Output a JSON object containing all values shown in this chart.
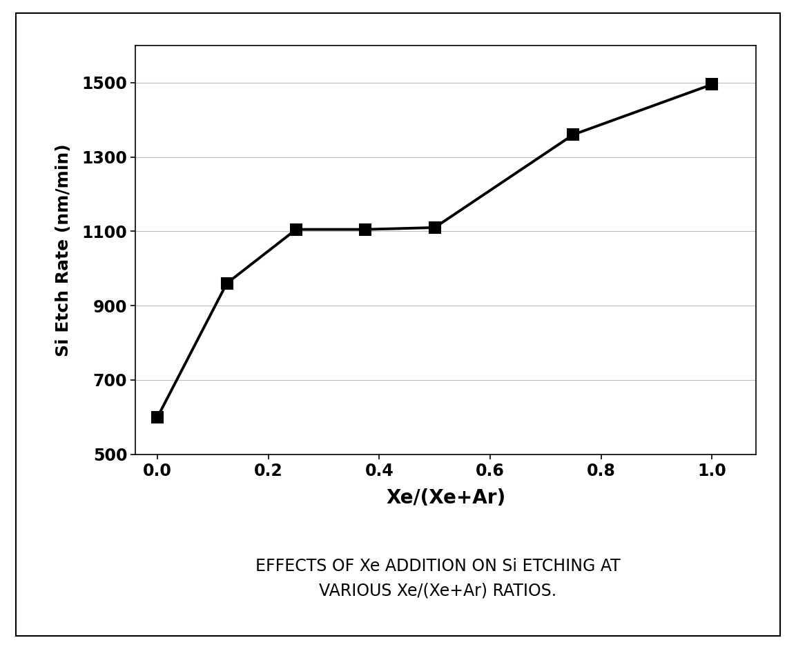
{
  "x": [
    0.0,
    0.125,
    0.25,
    0.375,
    0.5,
    0.75,
    1.0
  ],
  "y": [
    600,
    960,
    1105,
    1105,
    1110,
    1360,
    1495
  ],
  "xlabel": "Xe/(Xe+Ar)",
  "ylabel": "Si Etch Rate (nm/min)",
  "title_line1": "EFFECTS OF Xe ADDITION ON Si ETCHING AT",
  "title_line2": "VARIOUS Xe/(Xe+Ar) RATIOS.",
  "xlim": [
    -0.04,
    1.08
  ],
  "ylim": [
    500,
    1600
  ],
  "xticks": [
    0.0,
    0.2,
    0.4,
    0.6,
    0.8,
    1.0
  ],
  "yticks": [
    500,
    700,
    900,
    1100,
    1300,
    1500
  ],
  "line_color": "#000000",
  "marker": "s",
  "marker_size": 11,
  "marker_facecolor": "#000000",
  "linewidth": 2.8,
  "background_color": "#ffffff",
  "grid_color": "#bbbbbb",
  "xlabel_fontsize": 20,
  "ylabel_fontsize": 18,
  "tick_fontsize": 17,
  "title_fontsize": 17
}
